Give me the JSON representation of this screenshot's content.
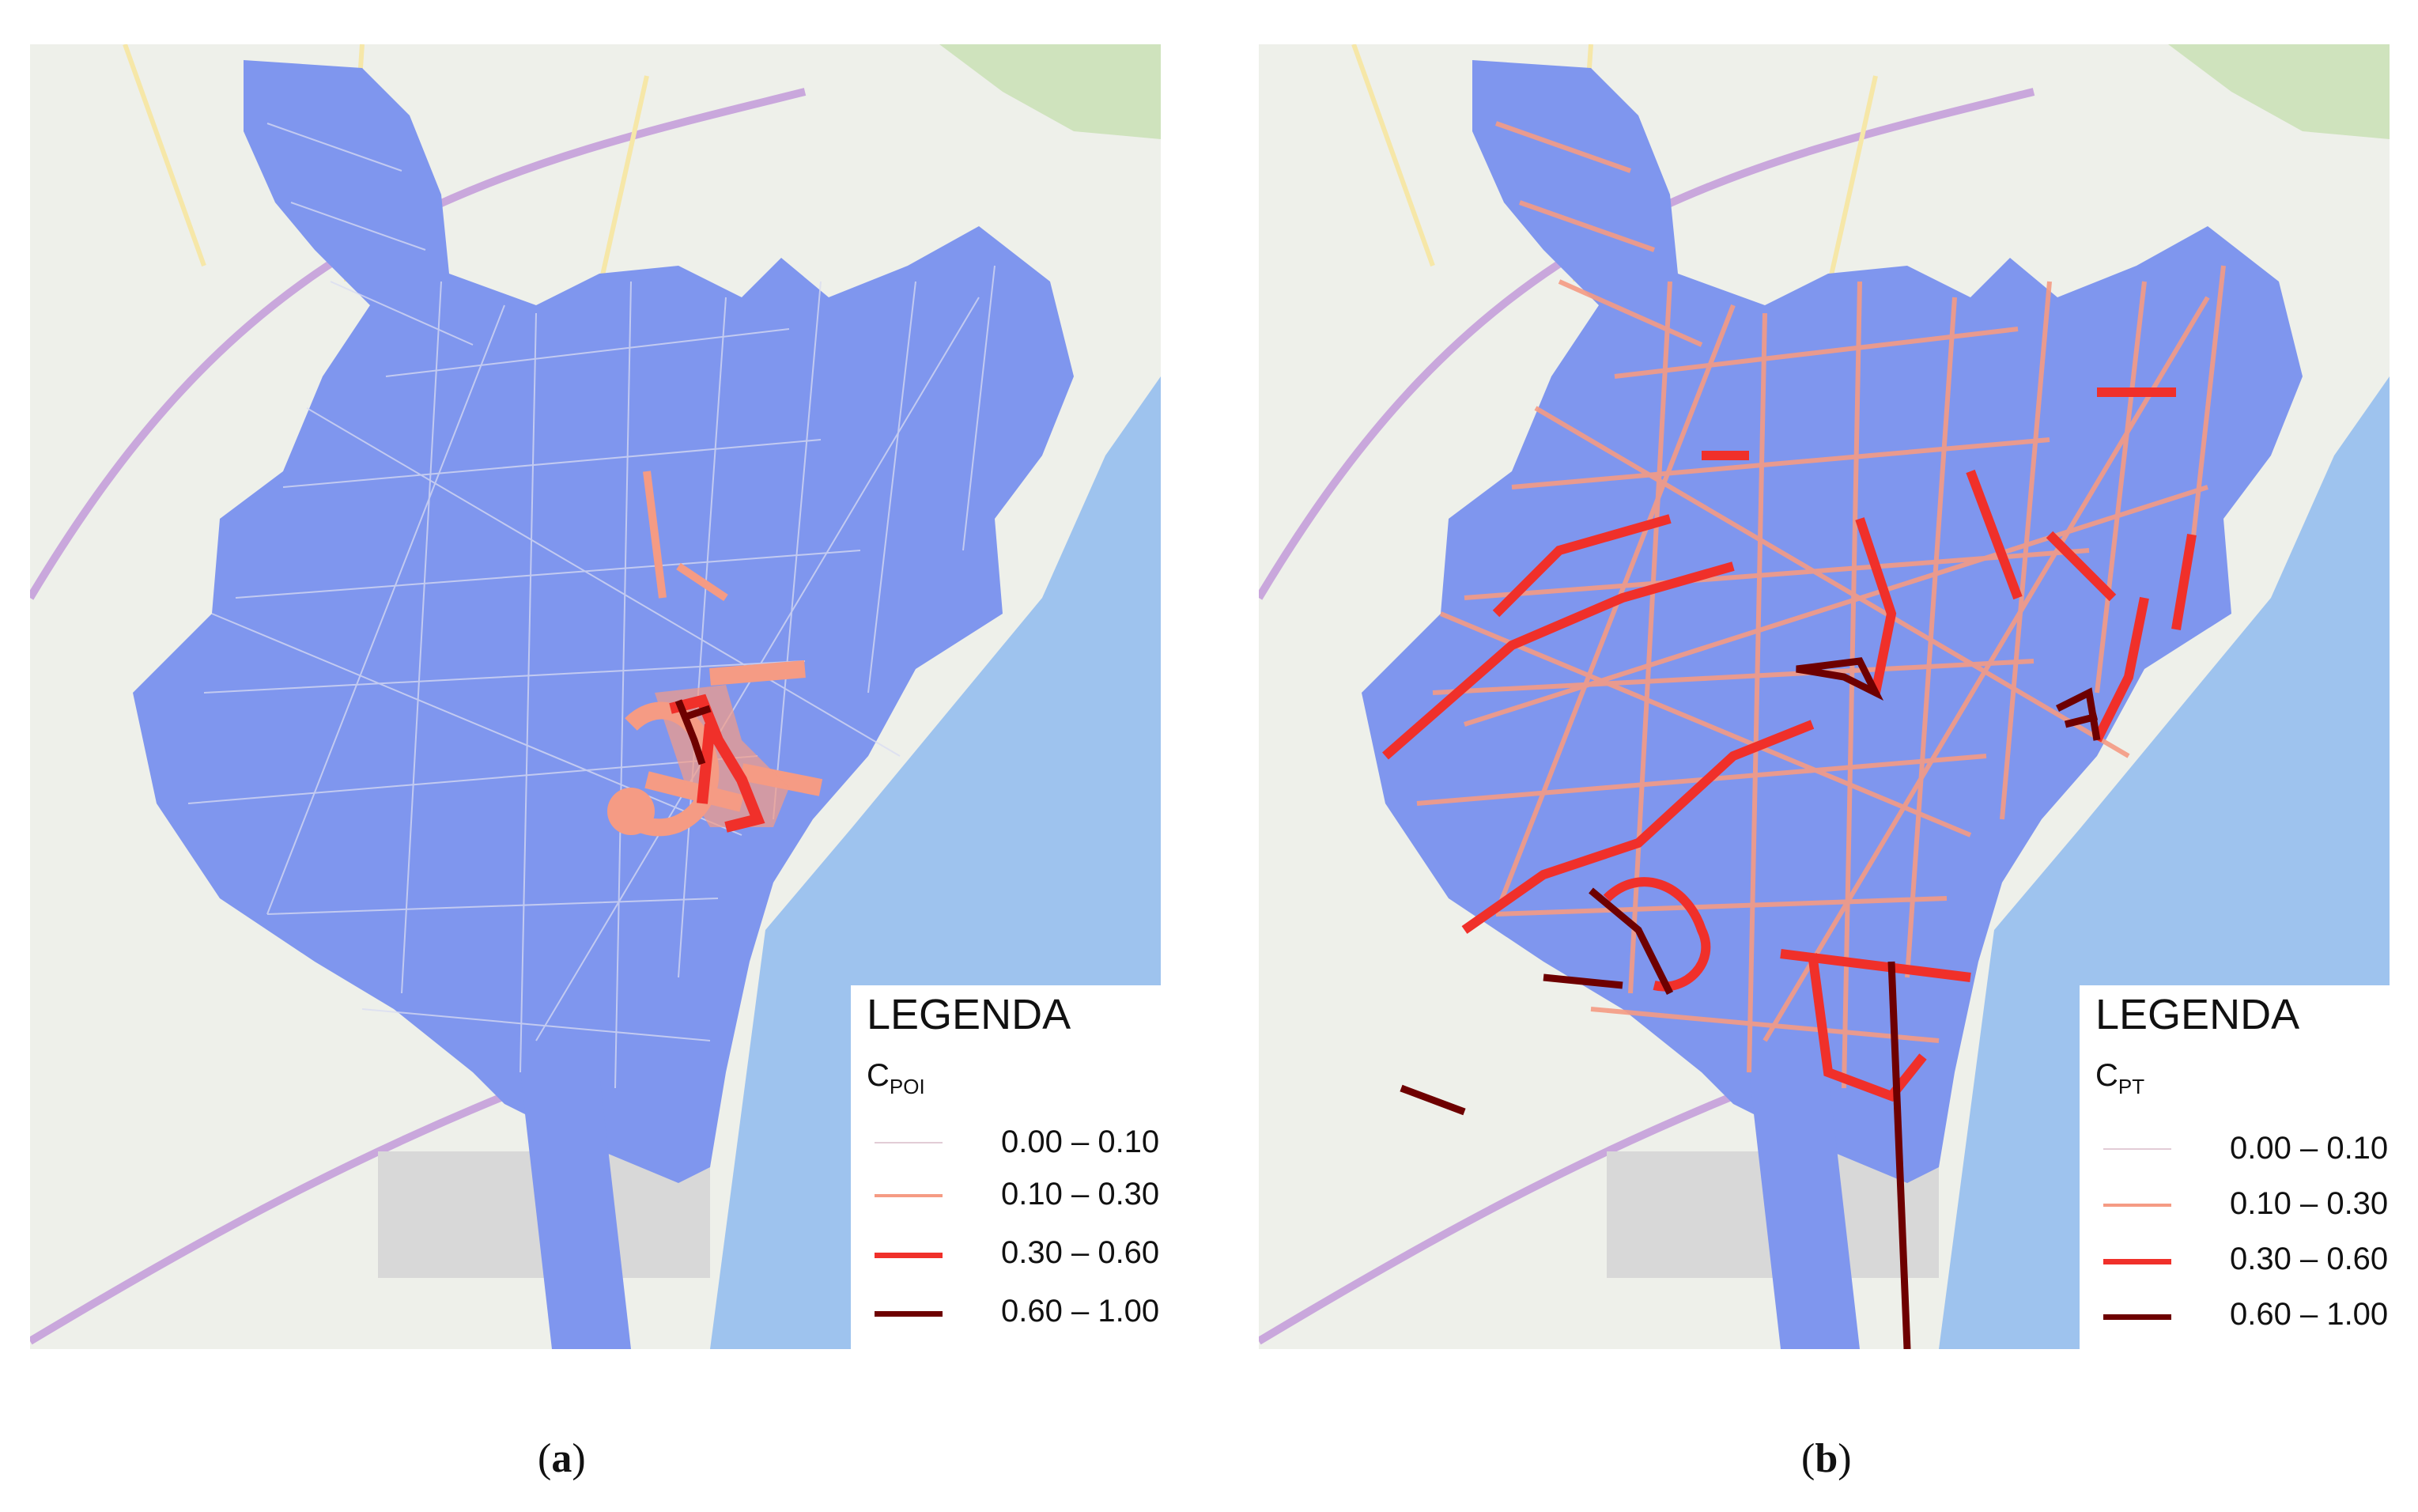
{
  "colors": {
    "map_background": "#eef0ea",
    "sea": "#9ec3ee",
    "city_area": "#7f96ee",
    "road_network": "#d9dcf2",
    "class_0_10": "#e2ccd6",
    "class_10_30": "#f59b84",
    "class_30_60": "#f0302a",
    "class_60_100": "#6e0000"
  },
  "panels": [
    {
      "id": "a",
      "legend": {
        "title": "LEGENDA",
        "variable_main": "C",
        "variable_sub": "POI",
        "classes": [
          {
            "label": "0.00 – 0.10",
            "color": "#e2ccd6"
          },
          {
            "label": "0.10 – 0.30",
            "color": "#f59b84"
          },
          {
            "label": "0.30 – 0.60",
            "color": "#f0302a"
          },
          {
            "label": "0.60 – 1.00",
            "color": "#6e0000"
          }
        ]
      },
      "caption": {
        "open": "(",
        "letter": "a",
        "close": ")"
      }
    },
    {
      "id": "b",
      "legend": {
        "title": "LEGENDA",
        "variable_main": "C",
        "variable_sub": "PT",
        "classes": [
          {
            "label": "0.00 – 0.10",
            "color": "#e2ccd6"
          },
          {
            "label": "0.10 – 0.30",
            "color": "#f59b84"
          },
          {
            "label": "0.30 – 0.60",
            "color": "#f0302a"
          },
          {
            "label": "0.60 – 1.00",
            "color": "#6e0000"
          }
        ]
      },
      "caption": {
        "open": "(",
        "letter": "b",
        "close": ")"
      }
    }
  ]
}
